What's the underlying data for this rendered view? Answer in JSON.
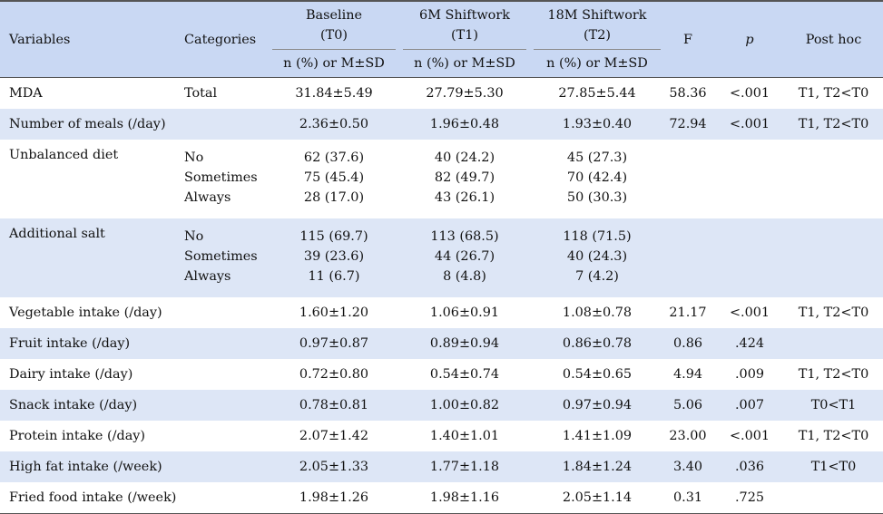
{
  "header": {
    "variables": "Variables",
    "categories": "Categories",
    "t0_title": "Baseline",
    "t0_sub": "(T0)",
    "t1_title": "6M Shiftwork",
    "t1_sub": "(T1)",
    "t2_title": "18M Shiftwork",
    "t2_sub": "(T2)",
    "stat_label": "n (%) or M±SD",
    "f": "F",
    "p": "p",
    "posthoc": "Post hoc"
  },
  "rows": [
    {
      "variable": "MDA",
      "category": "Total",
      "t0": "31.84±5.49",
      "t1": "27.79±5.30",
      "t2": "27.85±5.44",
      "f": "58.36",
      "p": "<.001",
      "posthoc": "T1, T2<T0"
    },
    {
      "variable": "Number of meals (/day)",
      "category": "",
      "t0": "2.36±0.50",
      "t1": "1.96±0.48",
      "t2": "1.93±0.40",
      "f": "72.94",
      "p": "<.001",
      "posthoc": "T1, T2<T0"
    },
    {
      "variable": "Unbalanced diet",
      "categories": [
        "No",
        "Sometimes",
        "Always"
      ],
      "t0": [
        "62 (37.6)",
        "75 (45.4)",
        "28 (17.0)"
      ],
      "t1": [
        "40 (24.2)",
        "82 (49.7)",
        "43 (26.1)"
      ],
      "t2": [
        "45 (27.3)",
        "70 (42.4)",
        "50 (30.3)"
      ],
      "f": "",
      "p": "",
      "posthoc": ""
    },
    {
      "variable": "Additional salt",
      "categories": [
        "No",
        "Sometimes",
        "Always"
      ],
      "t0": [
        "115 (69.7)",
        "39 (23.6)",
        "11 (6.7)"
      ],
      "t1": [
        "113 (68.5)",
        "44 (26.7)",
        "8 (4.8)"
      ],
      "t2": [
        "118 (71.5)",
        "40 (24.3)",
        "7 (4.2)"
      ],
      "f": "",
      "p": "",
      "posthoc": ""
    },
    {
      "variable": "Vegetable intake (/day)",
      "category": "",
      "t0": "1.60±1.20",
      "t1": "1.06±0.91",
      "t2": "1.08±0.78",
      "f": "21.17",
      "p": "<.001",
      "posthoc": "T1, T2<T0"
    },
    {
      "variable": "Fruit intake (/day)",
      "category": "",
      "t0": "0.97±0.87",
      "t1": "0.89±0.94",
      "t2": "0.86±0.78",
      "f": "0.86",
      "p": ".424",
      "posthoc": ""
    },
    {
      "variable": "Dairy intake (/day)",
      "category": "",
      "t0": "0.72±0.80",
      "t1": "0.54±0.74",
      "t2": "0.54±0.65",
      "f": "4.94",
      "p": ".009",
      "posthoc": "T1, T2<T0"
    },
    {
      "variable": "Snack intake (/day)",
      "category": "",
      "t0": "0.78±0.81",
      "t1": "1.00±0.82",
      "t2": "0.97±0.94",
      "f": "5.06",
      "p": ".007",
      "posthoc": "T0<T1"
    },
    {
      "variable": "Protein intake (/day)",
      "category": "",
      "t0": "2.07±1.42",
      "t1": "1.40±1.01",
      "t2": "1.41±1.09",
      "f": "23.00",
      "p": "<.001",
      "posthoc": "T1, T2<T0"
    },
    {
      "variable": "High fat intake (/week)",
      "category": "",
      "t0": "2.05±1.33",
      "t1": "1.77±1.18",
      "t2": "1.84±1.24",
      "f": "3.40",
      "p": ".036",
      "posthoc": "T1<T0"
    },
    {
      "variable": "Fried food intake (/week)",
      "category": "",
      "t0": "1.98±1.26",
      "t1": "1.98±1.16",
      "t2": "2.05±1.14",
      "f": "0.31",
      "p": ".725",
      "posthoc": ""
    }
  ],
  "colors": {
    "header_bg": "#c9d8f3",
    "band_bg": "#dde6f6",
    "white_bg": "#ffffff"
  }
}
